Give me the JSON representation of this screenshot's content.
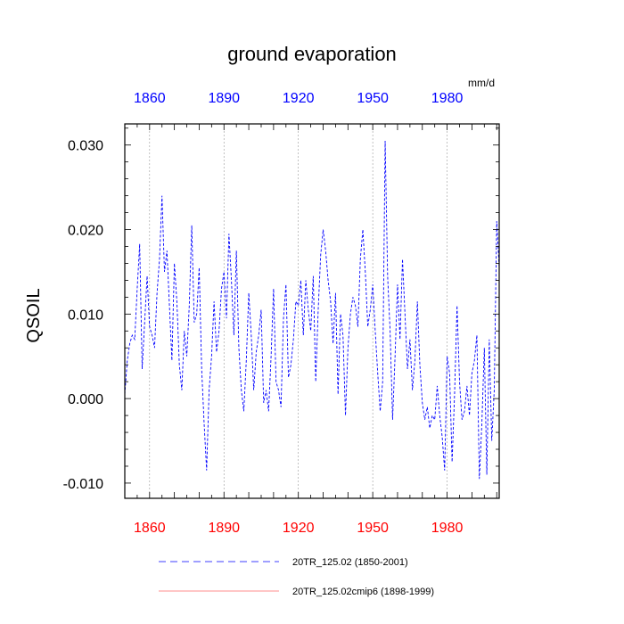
{
  "chart_data": {
    "type": "line",
    "title": "ground evaporation",
    "units": "mm/d",
    "ylabel": "QSOIL",
    "xlabel": "",
    "xlim": [
      1850,
      2001
    ],
    "ylim": [
      -0.0118,
      0.0325
    ],
    "grid": "vertical dotted lines at major x ticks",
    "bottom_axis_tick_labels": [
      "1860",
      "1890",
      "1920",
      "1950",
      "1980"
    ],
    "bottom_axis_tick_values": [
      1860,
      1890,
      1920,
      1950,
      1980
    ],
    "bottom_axis_color": "#ff0000",
    "top_axis_tick_labels": [
      "1860",
      "1890",
      "1920",
      "1950",
      "1980"
    ],
    "top_axis_tick_values": [
      1860,
      1890,
      1920,
      1950,
      1980
    ],
    "top_axis_color": "#0000ff",
    "y_tick_labels": [
      "0.030",
      "0.020",
      "0.010",
      "0.000",
      "-0.010"
    ],
    "y_tick_values": [
      0.03,
      0.02,
      0.01,
      0.0,
      -0.01
    ],
    "legend": {
      "placement": "bottom",
      "entries": [
        {
          "label": "20TR_125.02 (1850-2001)",
          "color": "#0000ff",
          "style": "dashed"
        },
        {
          "label": "20TR_125.02cmip6 (1898-1999)",
          "color": "#ff0000",
          "style": "solid"
        }
      ]
    },
    "series": [
      {
        "name": "20TR_125.02 (1850-2001)",
        "color": "#0000ff",
        "style": "dashed",
        "x_start": 1850,
        "x_step": 1,
        "values": [
          0.0005,
          0.0045,
          0.0065,
          0.0075,
          0.007,
          0.013,
          0.0183,
          0.0035,
          0.009,
          0.0145,
          0.0085,
          0.0075,
          0.006,
          0.0125,
          0.0165,
          0.024,
          0.015,
          0.0175,
          0.011,
          0.0045,
          0.016,
          0.0115,
          0.004,
          0.001,
          0.008,
          0.005,
          0.011,
          0.0205,
          0.009,
          0.01,
          0.0155,
          0.0035,
          -0.003,
          -0.0085,
          0.001,
          0.005,
          0.0115,
          0.0055,
          0.008,
          0.013,
          0.015,
          0.0095,
          0.0195,
          0.014,
          0.0075,
          0.0175,
          0.006,
          0.001,
          -0.0015,
          0.0045,
          0.0125,
          0.0075,
          0.001,
          0.0055,
          0.0075,
          0.0105,
          -0.0005,
          0.001,
          -0.0015,
          0.005,
          0.013,
          0.002,
          0.001,
          -0.001,
          0.0095,
          0.0135,
          0.0025,
          0.004,
          0.007,
          0.0115,
          0.011,
          0.014,
          0.0075,
          0.014,
          0.0105,
          0.008,
          0.0145,
          0.002,
          0.0105,
          0.017,
          0.02,
          0.0175,
          0.014,
          0.0115,
          0.0065,
          0.0125,
          0.0005,
          0.01,
          0.0075,
          -0.002,
          0.006,
          0.01,
          0.012,
          0.011,
          0.0085,
          0.0165,
          0.02,
          0.015,
          0.0085,
          0.0105,
          0.0135,
          0.008,
          0.003,
          -0.0015,
          0.002,
          0.0305,
          0.0145,
          0.008,
          -0.0025,
          0.005,
          0.0135,
          0.007,
          0.0165,
          0.01,
          0.0035,
          0.007,
          0.001,
          0.0045,
          0.0115,
          0.004,
          -0.0005,
          -0.0025,
          -0.001,
          -0.0035,
          -0.002,
          -0.0025,
          0.0015,
          -0.002,
          -0.0045,
          -0.0085,
          0.005,
          0.003,
          -0.0075,
          0.0005,
          0.011,
          0.002,
          -0.0025,
          -0.0015,
          0.0015,
          -0.002,
          0.003,
          0.0045,
          0.0075,
          -0.0095,
          -0.003,
          0.006,
          -0.009,
          0.007,
          -0.005,
          0.001,
          0.021,
          0.0155
        ]
      },
      {
        "name": "20TR_125.02cmip6 (1898-1999)",
        "color": "#ff0000",
        "style": "solid",
        "values": []
      }
    ]
  }
}
